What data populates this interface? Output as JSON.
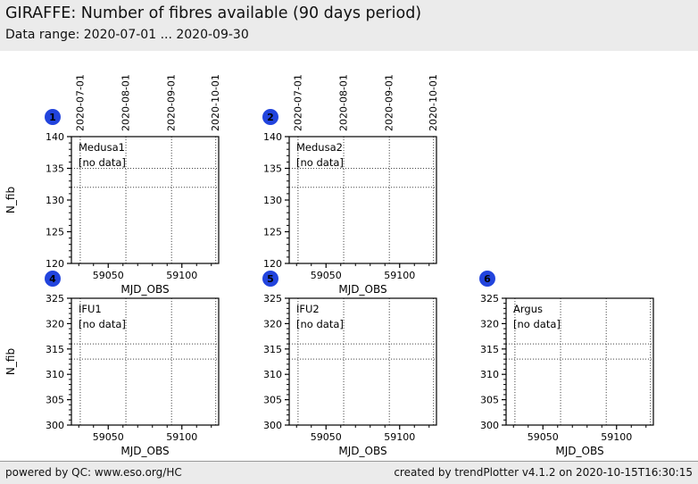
{
  "header": {
    "title": "GIRAFFE: Number of fibres available (90 days period)",
    "subtitle": "Data range: 2020-07-01 ... 2020-09-30"
  },
  "footer": {
    "left": "powered by QC: www.eso.org/HC",
    "right": "created by trendPlotter v4.1.2 on 2020-10-15T16:30:15"
  },
  "colors": {
    "strip_bg": "#ebebeb",
    "badge_bg": "#2244dd",
    "badge_text": "#ffffff",
    "axis": "#000000",
    "grid": "#444444",
    "no_data_green": "#00a000",
    "no_data_red": "#ee1111",
    "no_data_magenta": "#c020c0",
    "no_data_cyan": "#20bccc"
  },
  "chart_data": [
    {
      "type": "scatter",
      "badge": "1",
      "title": "Medusa1",
      "status": "[no data]",
      "status_color": "#00a000",
      "points": [],
      "xlabel": "MJD_OBS",
      "ylabel": "N_fib",
      "xlim": [
        59025,
        59125
      ],
      "ylim": [
        120,
        140
      ],
      "xticks": [
        59050,
        59100
      ],
      "yticks": [
        120,
        125,
        130,
        135,
        140
      ],
      "x_minor_step": 10,
      "y_minor_step": 1,
      "hlines": [
        135,
        132
      ],
      "date_gridlines": [
        {
          "mjd": 59031,
          "label": "2020-07-01"
        },
        {
          "mjd": 59062,
          "label": "2020-08-01"
        },
        {
          "mjd": 59093,
          "label": "2020-09-01"
        },
        {
          "mjd": 59123,
          "label": "2020-10-01"
        }
      ],
      "show_top_dates": true,
      "show_ylabel": true,
      "grid": "dotted",
      "grid_pos": {
        "row": 0,
        "col": 0
      }
    },
    {
      "type": "scatter",
      "badge": "2",
      "title": "Medusa2",
      "status": "[no data]",
      "status_color": "#ee1111",
      "points": [],
      "xlabel": "MJD_OBS",
      "ylabel": "N_fib",
      "xlim": [
        59025,
        59125
      ],
      "ylim": [
        120,
        140
      ],
      "xticks": [
        59050,
        59100
      ],
      "yticks": [
        120,
        125,
        130,
        135,
        140
      ],
      "x_minor_step": 10,
      "y_minor_step": 1,
      "hlines": [
        135,
        132
      ],
      "date_gridlines": [
        {
          "mjd": 59031,
          "label": "2020-07-01"
        },
        {
          "mjd": 59062,
          "label": "2020-08-01"
        },
        {
          "mjd": 59093,
          "label": "2020-09-01"
        },
        {
          "mjd": 59123,
          "label": "2020-10-01"
        }
      ],
      "show_top_dates": true,
      "show_ylabel": false,
      "grid": "dotted",
      "grid_pos": {
        "row": 0,
        "col": 1
      }
    },
    {
      "type": "scatter",
      "badge": "4",
      "title": "IFU1",
      "status": "[no data]",
      "status_color": "#ee1111",
      "points": [],
      "xlabel": "MJD_OBS",
      "ylabel": "N_fib",
      "xlim": [
        59025,
        59125
      ],
      "ylim": [
        300,
        325
      ],
      "xticks": [
        59050,
        59100
      ],
      "yticks": [
        300,
        305,
        310,
        315,
        320,
        325
      ],
      "x_minor_step": 10,
      "y_minor_step": 1,
      "hlines": [
        316,
        313
      ],
      "date_gridlines": [
        {
          "mjd": 59031,
          "label": "2020-07-01"
        },
        {
          "mjd": 59062,
          "label": "2020-08-01"
        },
        {
          "mjd": 59093,
          "label": "2020-09-01"
        },
        {
          "mjd": 59123,
          "label": "2020-10-01"
        }
      ],
      "show_top_dates": false,
      "show_ylabel": true,
      "grid": "dotted",
      "grid_pos": {
        "row": 1,
        "col": 0
      }
    },
    {
      "type": "scatter",
      "badge": "5",
      "title": "IFU2",
      "status": "[no data]",
      "status_color": "#c020c0",
      "points": [],
      "xlabel": "MJD_OBS",
      "ylabel": "N_fib",
      "xlim": [
        59025,
        59125
      ],
      "ylim": [
        300,
        325
      ],
      "xticks": [
        59050,
        59100
      ],
      "yticks": [
        300,
        305,
        310,
        315,
        320,
        325
      ],
      "x_minor_step": 10,
      "y_minor_step": 1,
      "hlines": [
        316,
        313
      ],
      "date_gridlines": [
        {
          "mjd": 59031,
          "label": "2020-07-01"
        },
        {
          "mjd": 59062,
          "label": "2020-08-01"
        },
        {
          "mjd": 59093,
          "label": "2020-09-01"
        },
        {
          "mjd": 59123,
          "label": "2020-10-01"
        }
      ],
      "show_top_dates": false,
      "show_ylabel": false,
      "grid": "dotted",
      "grid_pos": {
        "row": 1,
        "col": 1
      }
    },
    {
      "type": "scatter",
      "badge": "6",
      "title": "Argus",
      "status": "[no data]",
      "status_color": "#20bccc",
      "points": [],
      "xlabel": "MJD_OBS",
      "ylabel": "N_fib",
      "xlim": [
        59025,
        59125
      ],
      "ylim": [
        300,
        325
      ],
      "xticks": [
        59050,
        59100
      ],
      "yticks": [
        300,
        305,
        310,
        315,
        320,
        325
      ],
      "x_minor_step": 10,
      "y_minor_step": 1,
      "hlines": [
        316,
        313
      ],
      "date_gridlines": [
        {
          "mjd": 59031,
          "label": "2020-07-01"
        },
        {
          "mjd": 59062,
          "label": "2020-08-01"
        },
        {
          "mjd": 59093,
          "label": "2020-09-01"
        },
        {
          "mjd": 59123,
          "label": "2020-10-01"
        }
      ],
      "show_top_dates": false,
      "show_ylabel": false,
      "grid": "dotted",
      "grid_pos": {
        "row": 1,
        "col": 2
      }
    }
  ]
}
